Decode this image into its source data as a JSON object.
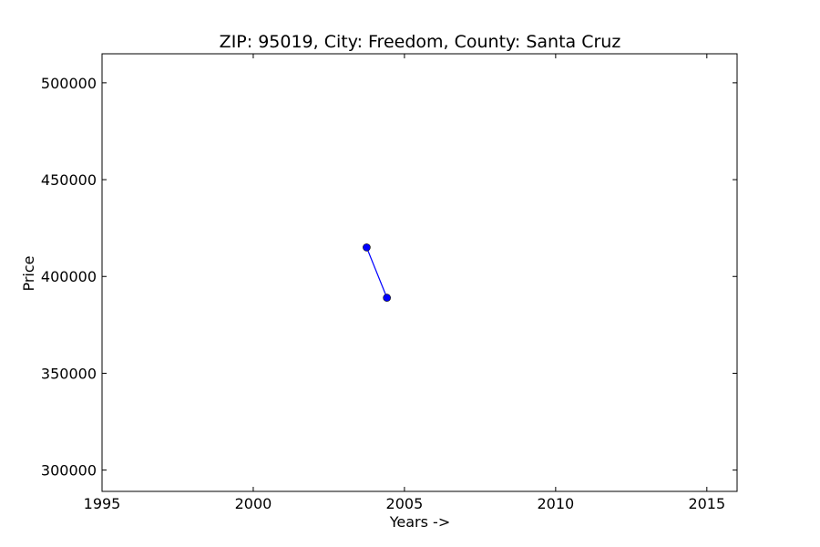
{
  "chart_data": {
    "type": "line",
    "title": "ZIP: 95019, City: Freedom, County: Santa Cruz",
    "xlabel": "Years ->",
    "ylabel": "Price",
    "xlim": [
      1995,
      2016
    ],
    "ylim": [
      289000,
      515000
    ],
    "xticks": [
      1995,
      2000,
      2005,
      2010,
      2015
    ],
    "yticks": [
      300000,
      350000,
      400000,
      450000,
      500000
    ],
    "grid": false,
    "series": [
      {
        "color": "#0000ff",
        "marker": "circle",
        "points": [
          {
            "x": 2003.75,
            "y": 415000
          },
          {
            "x": 2004.42,
            "y": 389000
          }
        ]
      }
    ]
  }
}
